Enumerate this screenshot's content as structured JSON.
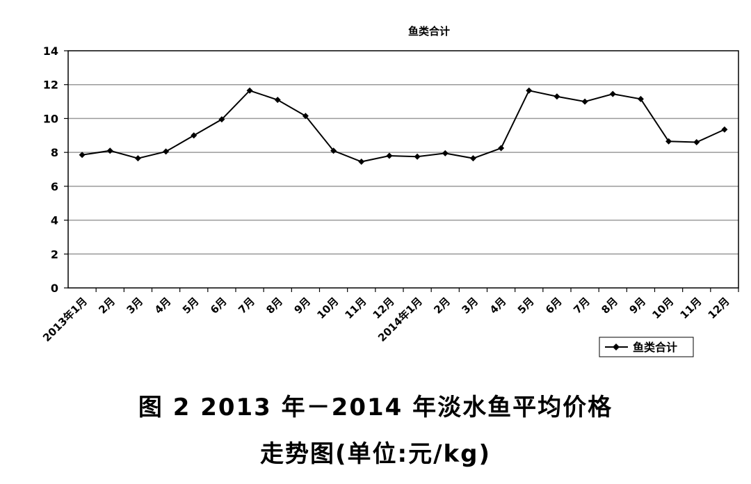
{
  "chart_data": {
    "type": "line",
    "title": "鱼类合计",
    "categories": [
      "2013年1月",
      "2月",
      "3月",
      "4月",
      "5月",
      "6月",
      "7月",
      "8月",
      "9月",
      "10月",
      "11月",
      "12月",
      "2014年1月",
      "2月",
      "3月",
      "4月",
      "5月",
      "6月",
      "7月",
      "8月",
      "9月",
      "10月",
      "11月",
      "12月"
    ],
    "series": [
      {
        "name": "鱼类合计",
        "values": [
          7.85,
          8.1,
          7.65,
          8.05,
          9.0,
          9.95,
          11.65,
          11.1,
          10.15,
          8.1,
          7.45,
          7.8,
          7.75,
          7.95,
          7.65,
          8.25,
          11.65,
          11.3,
          11.0,
          11.45,
          11.15,
          8.65,
          8.6,
          9.35
        ]
      }
    ],
    "ylim": [
      0,
      14
    ],
    "yticks": [
      "0",
      "2",
      "4",
      "6",
      "8",
      "10",
      "12",
      "14"
    ],
    "grid": true,
    "legend_position": "bottom-right",
    "colors": {
      "line": "#000000",
      "grid": "#9a9a9a"
    }
  },
  "caption": {
    "line1": "图 2   2013 年－2014 年淡水鱼平均价格",
    "line2": "走势图(单位:元/kg)"
  }
}
